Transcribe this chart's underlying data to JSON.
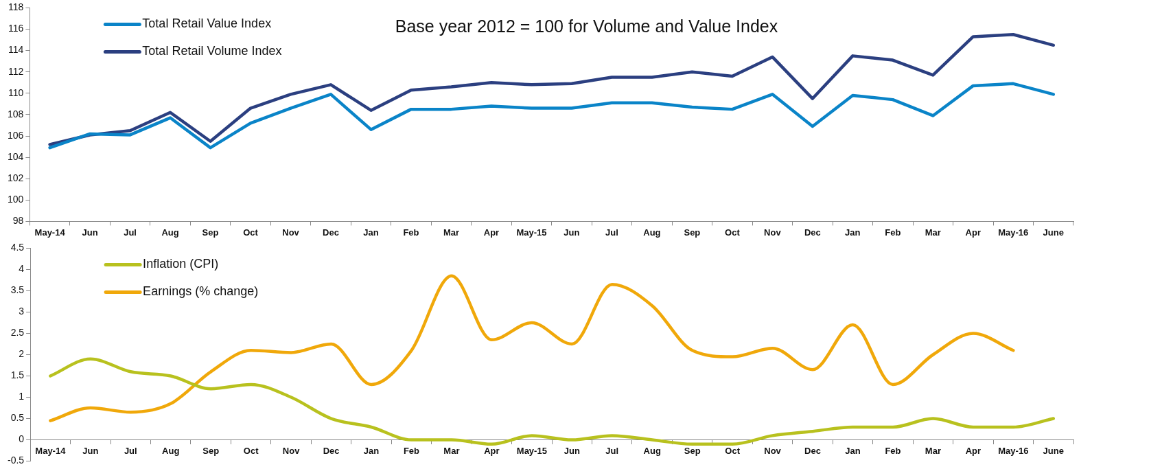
{
  "chart_data": [
    {
      "type": "line",
      "title": "Base year 2012 = 100 for Volume and Value Index",
      "categories": [
        "May-14",
        "Jun",
        "Jul",
        "Aug",
        "Sep",
        "Oct",
        "Nov",
        "Dec",
        "Jan",
        "Feb",
        "Mar",
        "Apr",
        "May-15",
        "Jun",
        "Jul",
        "Aug",
        "Sep",
        "Oct",
        "Nov",
        "Dec",
        "Jan",
        "Feb",
        "Mar",
        "Apr",
        "May-16",
        "June"
      ],
      "series": [
        {
          "name": "Total Retail Value Index",
          "color": "#0a84c8",
          "values": [
            104.9,
            106.2,
            106.1,
            107.7,
            104.9,
            107.2,
            108.6,
            109.9,
            106.6,
            108.5,
            108.5,
            108.8,
            108.6,
            108.6,
            109.1,
            109.1,
            108.7,
            108.5,
            109.9,
            106.9,
            109.8,
            109.4,
            107.9,
            110.7,
            110.9,
            109.9
          ]
        },
        {
          "name": "Total Retail Volume Index",
          "color": "#2b3f80",
          "values": [
            105.2,
            106.1,
            106.5,
            108.2,
            105.5,
            108.6,
            109.9,
            110.8,
            108.4,
            110.3,
            110.6,
            111.0,
            110.8,
            110.9,
            111.5,
            111.5,
            112.0,
            111.6,
            113.4,
            109.5,
            113.5,
            113.1,
            111.7,
            115.3,
            115.5,
            114.5
          ]
        }
      ],
      "ylim": [
        98,
        118
      ],
      "yticks": [
        98,
        100,
        102,
        104,
        106,
        108,
        110,
        112,
        114,
        116,
        118
      ],
      "grid": false,
      "legend": "top left",
      "marker": "none",
      "line_style": "solid"
    },
    {
      "type": "line",
      "categories": [
        "May-14",
        "Jun",
        "Jul",
        "Aug",
        "Sep",
        "Oct",
        "Nov",
        "Dec",
        "Jan",
        "Feb",
        "Mar",
        "Apr",
        "May-15",
        "Jun",
        "Jul",
        "Aug",
        "Sep",
        "Oct",
        "Nov",
        "Dec",
        "Jan",
        "Feb",
        "Mar",
        "Apr",
        "May-16",
        "June"
      ],
      "series": [
        {
          "name": "Inflation (CPI)",
          "color": "#b8c11e",
          "values": [
            1.5,
            1.9,
            1.6,
            1.5,
            1.2,
            1.3,
            1.0,
            0.5,
            0.3,
            0.0,
            0.0,
            -0.1,
            0.1,
            0.0,
            0.1,
            0.0,
            -0.1,
            -0.1,
            0.1,
            0.2,
            0.3,
            0.3,
            0.5,
            0.3,
            0.3,
            0.5
          ]
        },
        {
          "name": "Earnings (% change)",
          "color": "#f0a80a",
          "values": [
            0.45,
            0.75,
            0.65,
            0.85,
            1.6,
            2.1,
            2.05,
            2.25,
            1.3,
            2.1,
            3.85,
            2.35,
            2.75,
            2.25,
            3.65,
            3.15,
            2.1,
            1.95,
            2.15,
            1.65,
            2.7,
            1.3,
            2.0,
            2.5,
            2.1,
            null
          ]
        }
      ],
      "ylim": [
        -0.5,
        4.5
      ],
      "yticks": [
        -0.5,
        0,
        0.5,
        1,
        1.5,
        2,
        2.5,
        3,
        3.5,
        4,
        4.5
      ],
      "grid": false,
      "legend": "top left",
      "marker": "none",
      "line_style": "solid"
    }
  ]
}
